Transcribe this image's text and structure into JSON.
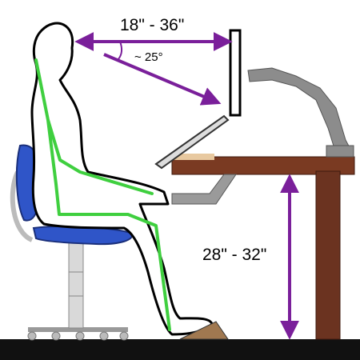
{
  "labels": {
    "eye_distance": "18\" - 36\"",
    "gaze_angle": "~ 25°",
    "desk_height": "28\" - 32\""
  },
  "colors": {
    "arrow": "#7a1f9a",
    "spine": "#3fcf3f",
    "chair_seat": "#2f55c8",
    "desk_top": "#7a3a22",
    "desk_leg": "#6b3320",
    "monitor_arm": "#8c8c8c",
    "floor": "#111111",
    "footrest": "#a07850"
  },
  "icons": {
    "figure": "seated-person-icon",
    "chair": "office-chair-icon",
    "monitor": "monitor-icon",
    "laptop": "laptop-icon"
  }
}
